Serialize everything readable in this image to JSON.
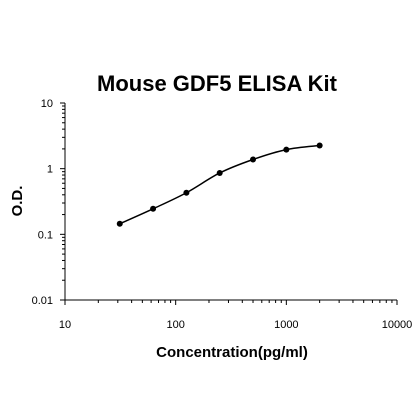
{
  "chart_data": {
    "type": "scatter",
    "title": "Mouse GDF5 ELISA Kit",
    "xlabel": "Concentration(pg/ml)",
    "ylabel": "O.D.",
    "x_scale": "log",
    "y_scale": "log",
    "xlim": [
      10,
      10000
    ],
    "ylim": [
      0.01,
      10
    ],
    "x_ticks": [
      "10",
      "100",
      "1000",
      "10000"
    ],
    "y_ticks": [
      "0.01",
      "0.1",
      "1",
      "10"
    ],
    "grid": false,
    "legend": "none",
    "series": [
      {
        "x": [
          31.25,
          62.5,
          125,
          250,
          500,
          1000,
          2000
        ],
        "y": [
          0.145,
          0.245,
          0.43,
          0.86,
          1.38,
          1.95,
          2.25
        ],
        "fit_curve": true
      }
    ],
    "colors": {
      "marks": "#000000",
      "axis": "#000000"
    }
  }
}
